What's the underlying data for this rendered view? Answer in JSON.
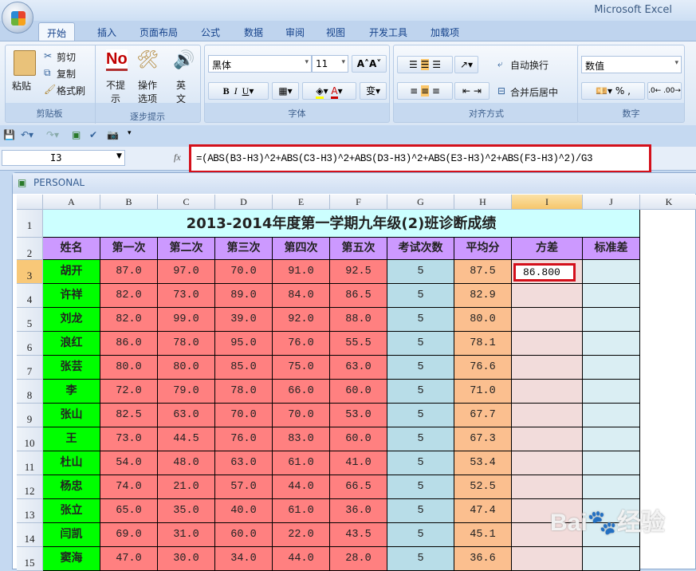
{
  "app_title": "Microsoft Excel",
  "tabs": [
    "开始",
    "插入",
    "页面布局",
    "公式",
    "数据",
    "审阅",
    "视图",
    "开发工具",
    "加载项"
  ],
  "ribbon": {
    "clipboard": {
      "paste": "粘贴",
      "cut": "剪切",
      "copy": "复制",
      "format_painter": "格式刷",
      "label": "剪贴板"
    },
    "steps": {
      "no_tip": "不提\n示",
      "options": "操作\n选项",
      "english": "英\n文",
      "label": "逐步提示"
    },
    "font": {
      "font_name": "黑体",
      "font_size": "11",
      "label": "字体"
    },
    "align": {
      "wrap": "自动换行",
      "merge": "合并后居中",
      "label": "对齐方式"
    },
    "number": {
      "format": "数值",
      "percent": "%",
      "comma": ",",
      "label": "数字"
    }
  },
  "formula_bar": {
    "name_box": "I3",
    "fx": "fx",
    "formula": "=(ABS(B3-H3)^2+ABS(C3-H3)^2+ABS(D3-H3)^2+ABS(E3-H3)^2+ABS(F3-H3)^2)/G3"
  },
  "workbook": {
    "title": "PERSONAL"
  },
  "columns": [
    "A",
    "B",
    "C",
    "D",
    "E",
    "F",
    "G",
    "H",
    "I",
    "J",
    "K"
  ],
  "selected_cell": "I3",
  "sheet": {
    "title": "2013-2014年度第一学期九年级(2)班诊断成绩",
    "headers": [
      "姓名",
      "第一次",
      "第二次",
      "第三次",
      "第四次",
      "第五次",
      "考试次数",
      "平均分",
      "方差",
      "标准差"
    ],
    "rows": [
      [
        "胡开",
        "87.0",
        "97.0",
        "70.0",
        "91.0",
        "92.5",
        "5",
        "87.5",
        "86.800",
        ""
      ],
      [
        "许祥",
        "82.0",
        "73.0",
        "89.0",
        "84.0",
        "86.5",
        "5",
        "82.9",
        "",
        ""
      ],
      [
        "刘龙",
        "82.0",
        "99.0",
        "39.0",
        "92.0",
        "88.0",
        "5",
        "80.0",
        "",
        ""
      ],
      [
        "浪红",
        "86.0",
        "78.0",
        "95.0",
        "76.0",
        "55.5",
        "5",
        "78.1",
        "",
        ""
      ],
      [
        "张芸",
        "80.0",
        "80.0",
        "85.0",
        "75.0",
        "63.0",
        "5",
        "76.6",
        "",
        ""
      ],
      [
        "李",
        "72.0",
        "79.0",
        "78.0",
        "66.0",
        "60.0",
        "5",
        "71.0",
        "",
        ""
      ],
      [
        "张山",
        "82.5",
        "63.0",
        "70.0",
        "70.0",
        "53.0",
        "5",
        "67.7",
        "",
        ""
      ],
      [
        "王",
        "73.0",
        "44.5",
        "76.0",
        "83.0",
        "60.0",
        "5",
        "67.3",
        "",
        ""
      ],
      [
        "杜山",
        "54.0",
        "48.0",
        "63.0",
        "61.0",
        "41.0",
        "5",
        "53.4",
        "",
        ""
      ],
      [
        "杨忠",
        "74.0",
        "21.0",
        "57.0",
        "44.0",
        "66.5",
        "5",
        "52.5",
        "",
        ""
      ],
      [
        "张立",
        "65.0",
        "35.0",
        "40.0",
        "61.0",
        "36.0",
        "5",
        "47.4",
        "",
        ""
      ],
      [
        "闫凯",
        "69.0",
        "31.0",
        "60.0",
        "22.0",
        "43.5",
        "5",
        "45.1",
        "",
        ""
      ],
      [
        "窦海",
        "47.0",
        "30.0",
        "34.0",
        "44.0",
        "28.0",
        "5",
        "36.6",
        "",
        ""
      ]
    ]
  },
  "watermark": "Bai 经验 jingyan.baidu.com",
  "colors": {
    "highlight": "#d4101b",
    "name_fill": "#00ff00",
    "score_fill": "#ff8080",
    "header_fill": "#cc99ff",
    "title_fill": "#ccffff"
  }
}
